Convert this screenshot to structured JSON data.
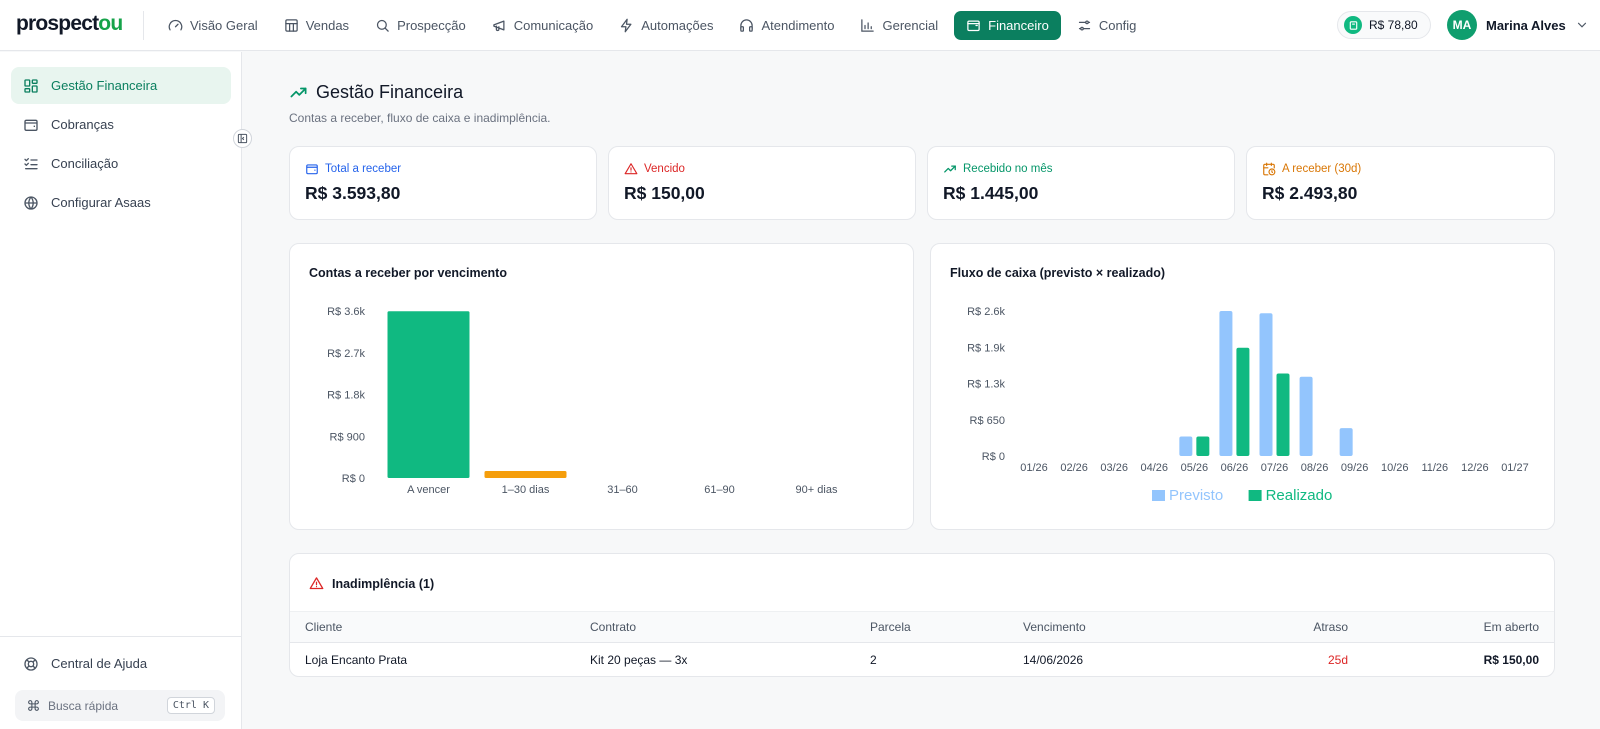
{
  "app": {
    "logo": {
      "part1": "prospect",
      "part2": "ou"
    },
    "colors": {
      "brand": "#0b7f5f",
      "green": "#10b981",
      "orange": "#f59e0b",
      "blue": "#93c5fd",
      "red": "#dc2626"
    }
  },
  "nav": {
    "items": [
      {
        "label": "Visão Geral",
        "icon": "gauge-icon"
      },
      {
        "label": "Vendas",
        "icon": "store-icon"
      },
      {
        "label": "Prospecção",
        "icon": "search-icon"
      },
      {
        "label": "Comunicação",
        "icon": "megaphone-icon"
      },
      {
        "label": "Automações",
        "icon": "zap-icon"
      },
      {
        "label": "Atendimento",
        "icon": "headphones-icon"
      },
      {
        "label": "Gerencial",
        "icon": "bar-chart-icon"
      },
      {
        "label": "Financeiro",
        "icon": "wallet-icon",
        "active": true
      },
      {
        "label": "Config",
        "icon": "sliders-icon"
      }
    ],
    "balance": "R$ 78,80",
    "user": {
      "initials": "MA",
      "name": "Marina Alves"
    }
  },
  "sidebar": {
    "items": [
      {
        "label": "Gestão Financeira",
        "icon": "dashboard-icon",
        "active": true
      },
      {
        "label": "Cobranças",
        "icon": "wallet-icon"
      },
      {
        "label": "Conciliação",
        "icon": "list-check-icon"
      },
      {
        "label": "Configurar Asaas",
        "icon": "globe-icon"
      }
    ],
    "help": "Central de Ajuda",
    "quick_search": "Busca rápida",
    "shortcut": "Ctrl K"
  },
  "page": {
    "title": "Gestão Financeira",
    "subtitle": "Contas a receber, fluxo de caixa e inadimplência."
  },
  "stats": [
    {
      "label": "Total a receber",
      "value": "R$ 3.593,80",
      "color": "#2563eb",
      "icon": "wallet-icon"
    },
    {
      "label": "Vencido",
      "value": "R$ 150,00",
      "color": "#dc2626",
      "icon": "alert-triangle-icon"
    },
    {
      "label": "Recebido no mês",
      "value": "R$ 1.445,00",
      "color": "#059669",
      "icon": "trending-up-icon"
    },
    {
      "label": "A receber (30d)",
      "value": "R$ 2.493,80",
      "color": "#d97706",
      "icon": "calendar-clock-icon"
    }
  ],
  "chart_data": [
    {
      "type": "bar",
      "title": "Contas a receber por vencimento",
      "categories": [
        "A vencer",
        "1–30 dias",
        "31–60",
        "61–90",
        "90+ dias"
      ],
      "values": [
        3593.8,
        150,
        0,
        0,
        0
      ],
      "colors": [
        "#10b981",
        "#f59e0b",
        "#10b981",
        "#10b981",
        "#10b981"
      ],
      "yticks": [
        "R$ 0",
        "R$ 900",
        "R$ 1.8k",
        "R$ 2.7k",
        "R$ 3.6k"
      ],
      "ylim": [
        0,
        3600
      ],
      "legend": false
    },
    {
      "type": "bar",
      "title": "Fluxo de caixa (previsto × realizado)",
      "categories": [
        "01/26",
        "02/26",
        "03/26",
        "04/26",
        "05/26",
        "06/26",
        "07/26",
        "08/26",
        "09/26",
        "10/26",
        "11/26",
        "12/26",
        "01/27"
      ],
      "series": [
        {
          "name": "Previsto",
          "color": "#93c5fd",
          "values": [
            0,
            0,
            0,
            0,
            350,
            2600,
            2560,
            1420,
            500,
            0,
            0,
            0,
            0
          ]
        },
        {
          "name": "Realizado",
          "color": "#10b981",
          "values": [
            0,
            0,
            0,
            0,
            350,
            1940,
            1480,
            0,
            0,
            0,
            0,
            0,
            0
          ]
        }
      ],
      "yticks": [
        "R$ 0",
        "R$ 650",
        "R$ 1.3k",
        "R$ 1.9k",
        "R$ 2.6k"
      ],
      "ylim": [
        0,
        2600
      ],
      "legend": "bottom-center"
    }
  ],
  "delinquency": {
    "title": "Inadimplência (1)",
    "columns": [
      "Cliente",
      "Contrato",
      "Parcela",
      "Vencimento",
      "Atraso",
      "Em aberto"
    ],
    "rows": [
      {
        "cliente": "Loja Encanto Prata",
        "contrato": "Kit 20 peças — 3x",
        "parcela": "2",
        "vencimento": "14/06/2026",
        "atraso": "25d",
        "em_aberto": "R$ 150,00"
      }
    ]
  }
}
